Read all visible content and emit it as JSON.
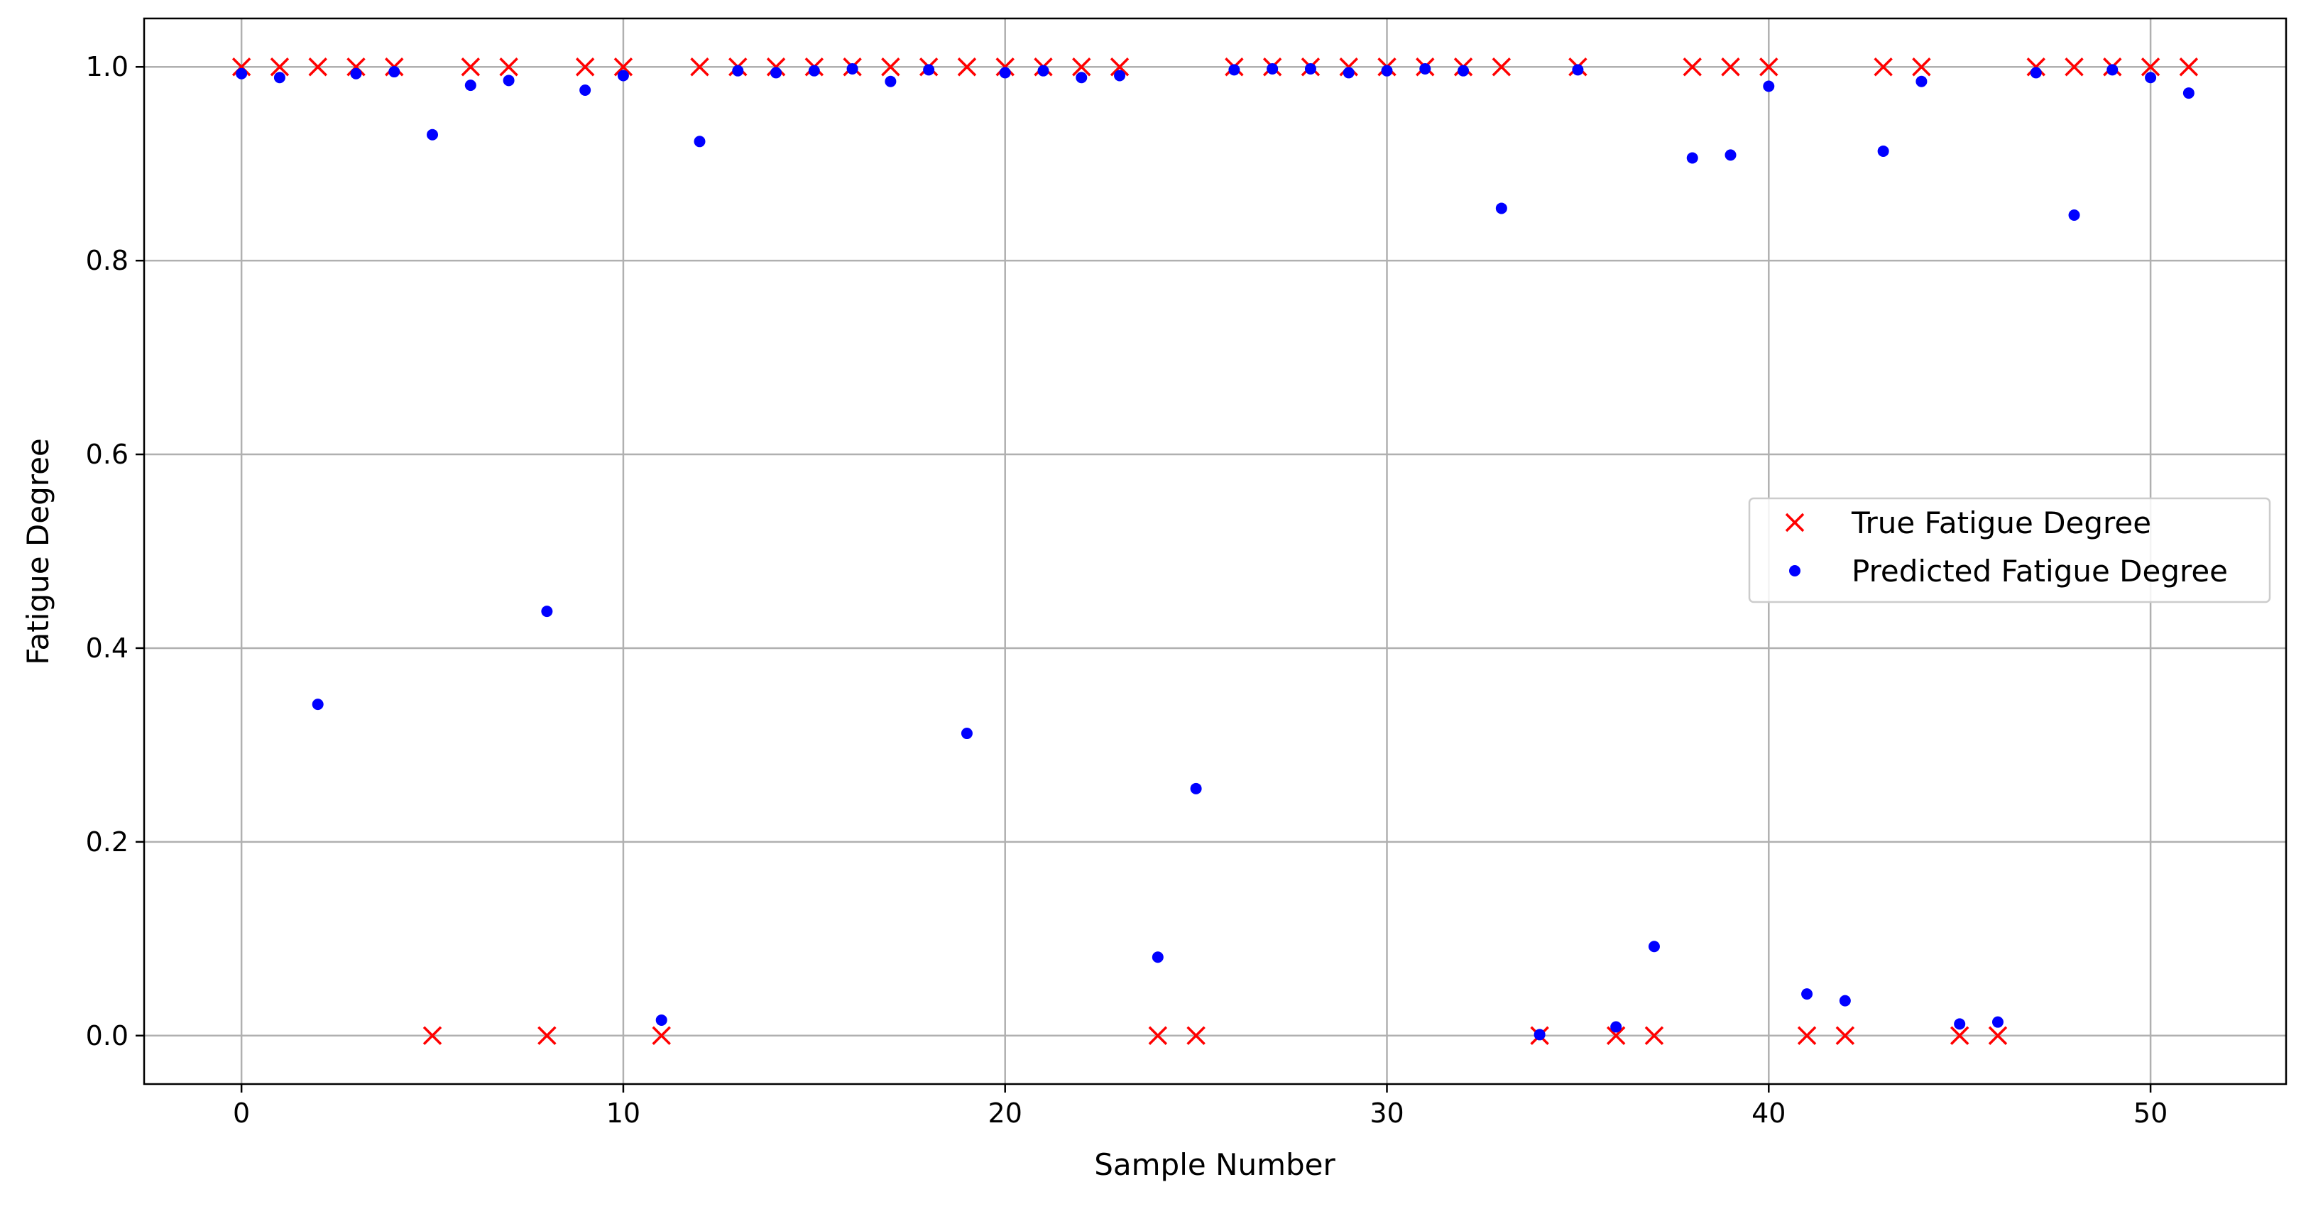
{
  "chart_data": {
    "type": "scatter",
    "title": "",
    "xlabel": "Sample Number",
    "ylabel": "Fatigue Degree",
    "xlim": [
      -2.55,
      53.55
    ],
    "ylim": [
      -0.05,
      1.05
    ],
    "xticks": [
      0,
      10,
      20,
      30,
      40,
      50
    ],
    "xtick_labels": [
      "0",
      "10",
      "20",
      "30",
      "40",
      "50"
    ],
    "yticks": [
      0.0,
      0.2,
      0.4,
      0.6,
      0.8,
      1.0
    ],
    "ytick_labels": [
      "0.0",
      "0.2",
      "0.4",
      "0.6",
      "0.8",
      "1.0"
    ],
    "grid": true,
    "legend_position": "center-right",
    "series": [
      {
        "name": "True Fatigue Degree",
        "marker": "x",
        "color": "#ff0000",
        "x": [
          0,
          1,
          2,
          3,
          4,
          5,
          6,
          7,
          8,
          9,
          10,
          11,
          12,
          13,
          14,
          15,
          16,
          17,
          18,
          19,
          20,
          21,
          22,
          23,
          24,
          25,
          26,
          27,
          28,
          29,
          30,
          31,
          32,
          33,
          34,
          35,
          36,
          37,
          38,
          39,
          40,
          41,
          42,
          43,
          44,
          45,
          46,
          47,
          48,
          49,
          50,
          51
        ],
        "y": [
          1,
          1,
          1,
          1,
          1,
          0,
          1,
          1,
          0,
          1,
          1,
          0,
          1,
          1,
          1,
          1,
          1,
          1,
          1,
          1,
          1,
          1,
          1,
          1,
          0,
          0,
          1,
          1,
          1,
          1,
          1,
          1,
          1,
          1,
          0,
          1,
          0,
          0,
          1,
          1,
          1,
          0,
          0,
          1,
          1,
          0,
          0,
          1,
          1,
          1,
          1,
          1
        ]
      },
      {
        "name": "Predicted Fatigue Degree",
        "marker": "dot",
        "color": "#0000ff",
        "x": [
          0,
          1,
          2,
          3,
          4,
          5,
          6,
          7,
          8,
          9,
          10,
          11,
          12,
          13,
          14,
          15,
          16,
          17,
          18,
          19,
          20,
          21,
          22,
          23,
          24,
          25,
          26,
          27,
          28,
          29,
          30,
          31,
          32,
          33,
          34,
          35,
          36,
          37,
          38,
          39,
          40,
          41,
          42,
          43,
          44,
          45,
          46,
          47,
          48,
          49,
          50,
          51
        ],
        "y": [
          0.993,
          0.989,
          0.342,
          0.993,
          0.995,
          0.93,
          0.981,
          0.986,
          0.438,
          0.976,
          0.991,
          0.016,
          0.923,
          0.996,
          0.994,
          0.996,
          0.998,
          0.985,
          0.997,
          0.312,
          0.994,
          0.996,
          0.989,
          0.991,
          0.081,
          0.255,
          0.997,
          0.998,
          0.998,
          0.994,
          0.996,
          0.998,
          0.996,
          0.854,
          0.001,
          0.997,
          0.009,
          0.092,
          0.906,
          0.909,
          0.98,
          0.043,
          0.036,
          0.913,
          0.985,
          0.012,
          0.014,
          0.994,
          0.847,
          0.997,
          0.989,
          0.973
        ]
      }
    ]
  }
}
